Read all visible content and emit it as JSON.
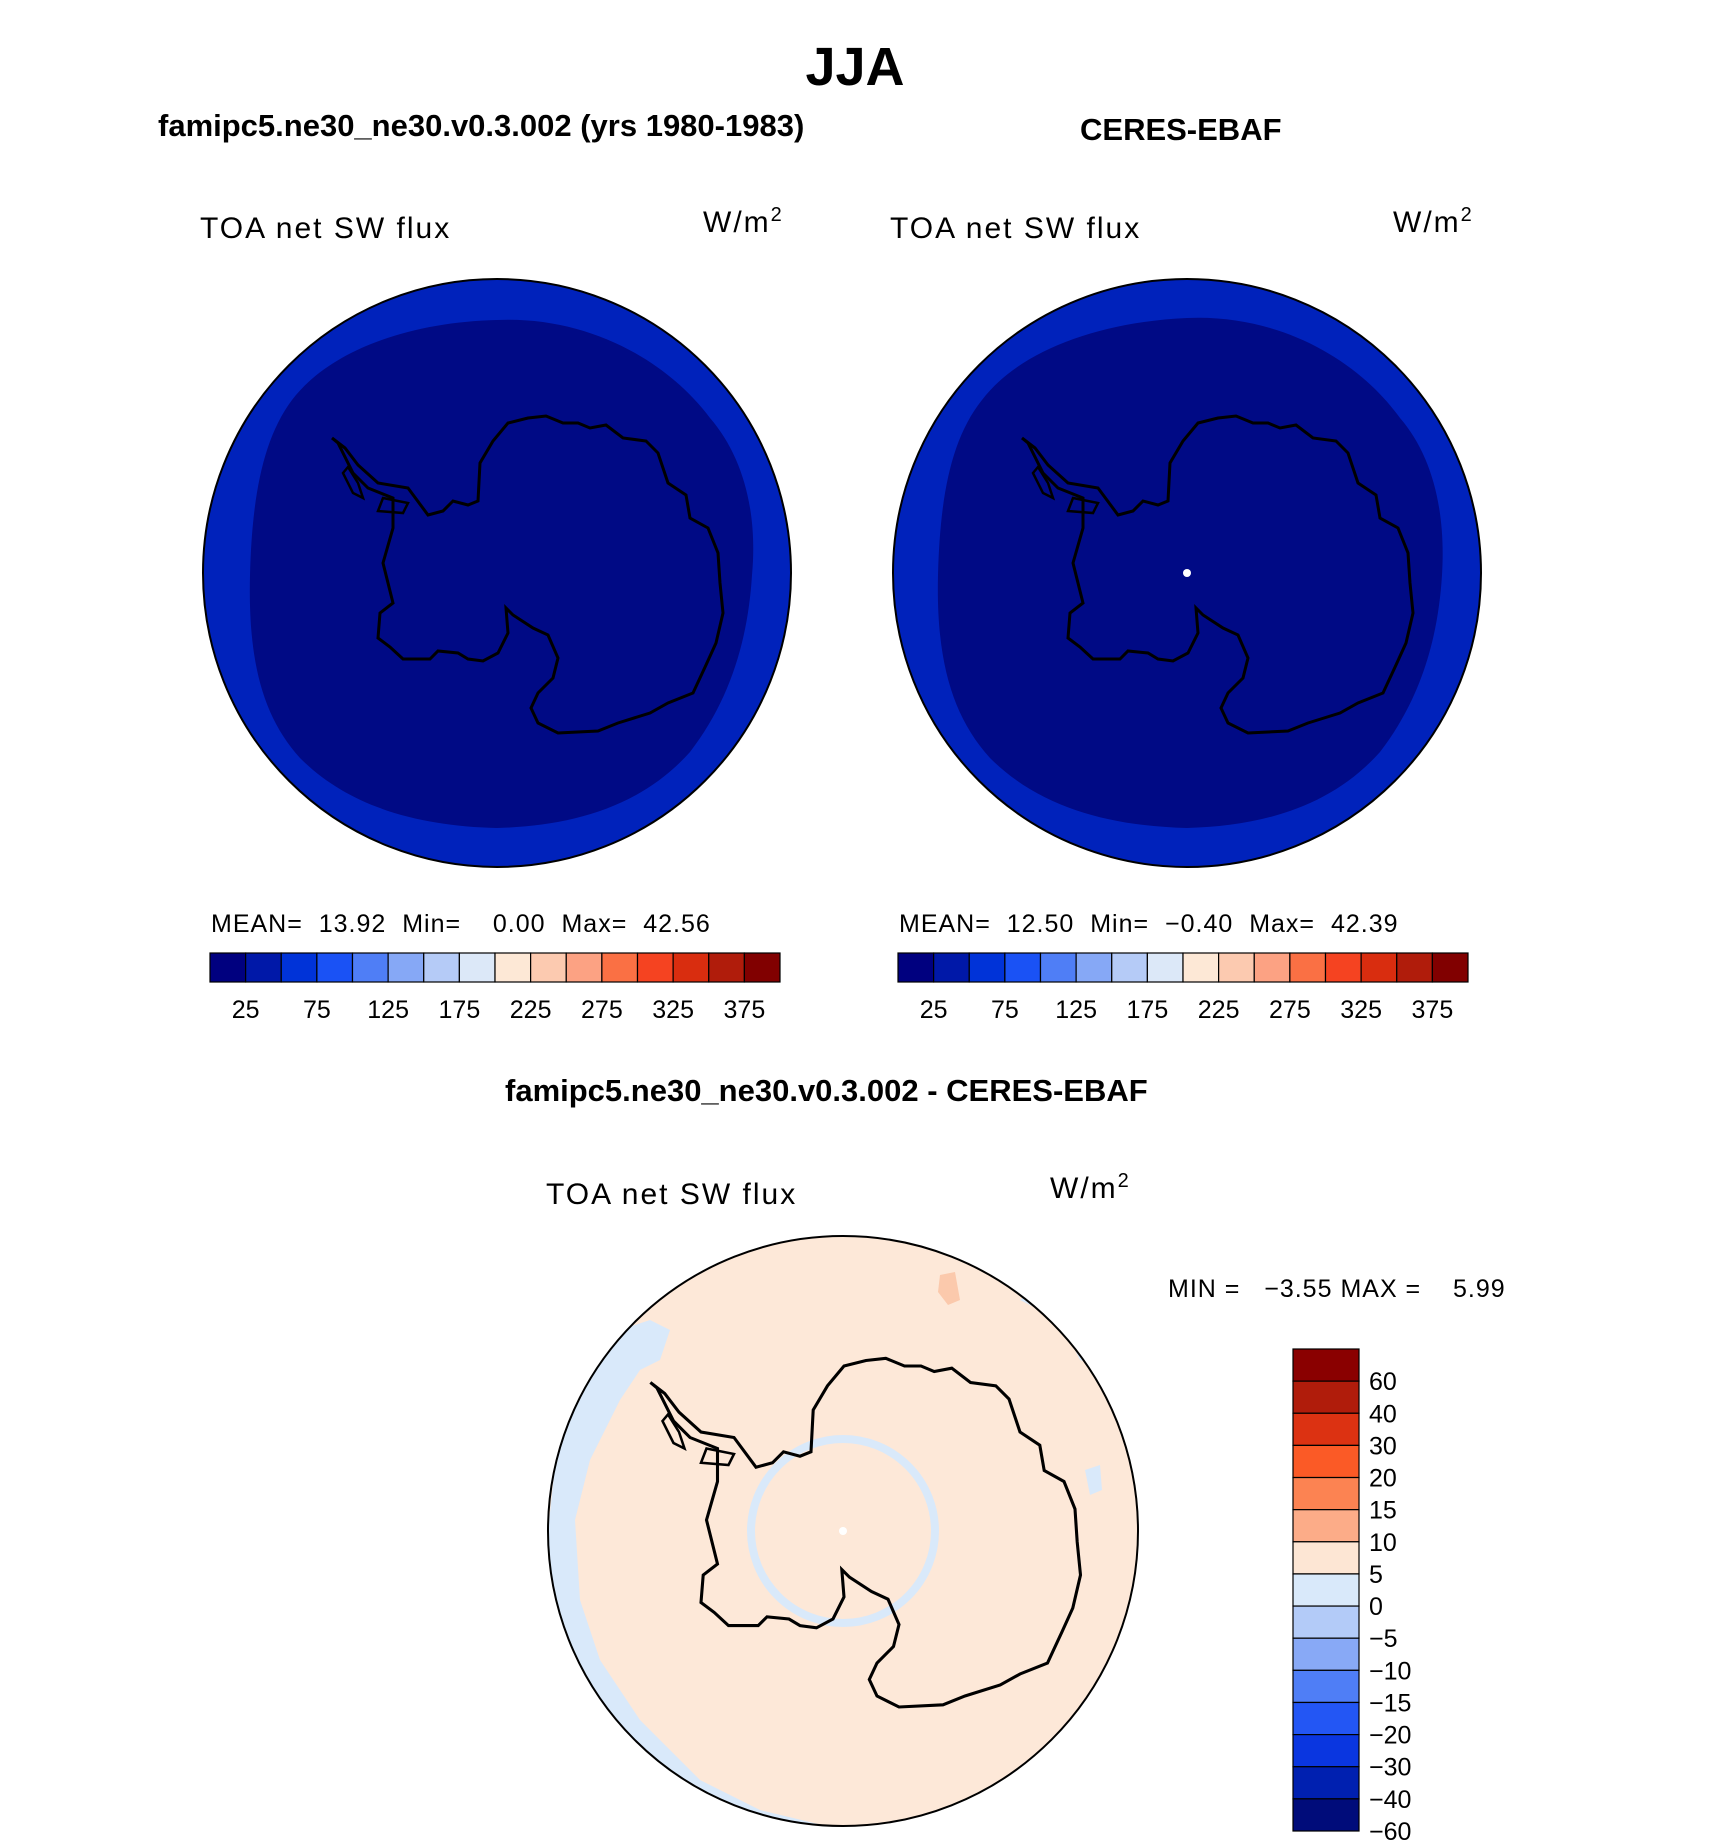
{
  "main_title": "JJA",
  "colors": {
    "outer_ring_blue": "#0022bb",
    "inner_dark_blue": "#000a85",
    "diff_peach": "#fde8d8",
    "diff_light_blue": "#d9e9fa",
    "coastline": "#000000"
  },
  "panels": [
    {
      "title": "famipc5.ne30_ne30.v0.3.002 (yrs 1980-1983)",
      "variable": "TOA net SW flux",
      "units": "W/m",
      "units_sup": "2",
      "mean_label": "MEAN=",
      "mean": "13.92",
      "min_label": "Min=",
      "min": "0.00",
      "max_label": "Max=",
      "max": "42.56"
    },
    {
      "title": "CERES-EBAF",
      "variable": "TOA net SW flux",
      "units": "W/m",
      "units_sup": "2",
      "mean_label": "MEAN=",
      "mean": "12.50",
      "min_label": "Min=",
      "min": "−0.40",
      "max_label": "Max=",
      "max": "42.39"
    }
  ],
  "diff_panel": {
    "title": "famipc5.ne30_ne30.v0.3.002 - CERES-EBAF",
    "variable": "TOA net SW flux",
    "units": "W/m",
    "units_sup": "2",
    "min_label": "MIN =",
    "min": "−3.55",
    "max_label": "MAX =",
    "max": "5.99"
  },
  "abs_colorbar": {
    "colors": [
      "#00007f",
      "#0018a8",
      "#0033d8",
      "#1a52f5",
      "#4f7ef6",
      "#86a8f6",
      "#b5cbf7",
      "#dce8f8",
      "#fde8d6",
      "#fccab0",
      "#fca283",
      "#fa7044",
      "#f54321",
      "#d92d0f",
      "#b01c0b",
      "#810000"
    ],
    "labels": [
      "25",
      "75",
      "125",
      "175",
      "225",
      "275",
      "325",
      "375"
    ]
  },
  "diff_colorbar": {
    "colors_top_to_bottom": [
      "#8a0000",
      "#b01c0b",
      "#dc3212",
      "#fb5a26",
      "#fc8352",
      "#fcac88",
      "#fde6d4",
      "#d9e9fa",
      "#b3cbf8",
      "#88a9f6",
      "#4f7ef6",
      "#2356f4",
      "#0a36e0",
      "#0020b0",
      "#000c7a"
    ],
    "labels_top_to_bottom": [
      "60",
      "40",
      "30",
      "20",
      "15",
      "10",
      "5",
      "0",
      "−5",
      "−10",
      "−15",
      "−20",
      "−30",
      "−40",
      "−60"
    ]
  }
}
